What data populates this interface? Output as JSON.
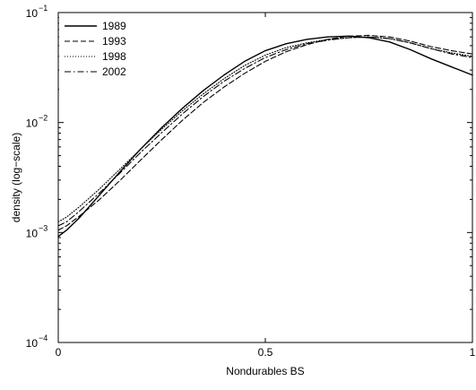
{
  "chart_data": {
    "type": "line",
    "title": "",
    "xlabel": "Nondurables BS",
    "ylabel": "density (log−scale)",
    "xlim": [
      0,
      1
    ],
    "ylim": [
      0.0001,
      0.1
    ],
    "yscale": "log",
    "grid": false,
    "legend_position": "top-left",
    "x_ticks": [
      {
        "value": 0,
        "label": "0"
      },
      {
        "value": 0.5,
        "label": "0.5"
      },
      {
        "value": 1,
        "label": "1"
      }
    ],
    "y_ticks": [
      {
        "value": 0.0001,
        "base": "10",
        "exp": "−4"
      },
      {
        "value": 0.001,
        "base": "10",
        "exp": "−3"
      },
      {
        "value": 0.01,
        "base": "10",
        "exp": "−2"
      },
      {
        "value": 0.1,
        "base": "10",
        "exp": "−1"
      }
    ],
    "series": [
      {
        "name": "1989",
        "line_style": "solid",
        "color": "#000000",
        "x": [
          0,
          0.02,
          0.05,
          0.1,
          0.15,
          0.2,
          0.25,
          0.3,
          0.35,
          0.4,
          0.45,
          0.5,
          0.55,
          0.6,
          0.65,
          0.7,
          0.75,
          0.8,
          0.85,
          0.9,
          0.95,
          1.0
        ],
        "y": [
          0.00092,
          0.00105,
          0.00135,
          0.0022,
          0.0036,
          0.0058,
          0.009,
          0.0135,
          0.0195,
          0.027,
          0.036,
          0.045,
          0.052,
          0.057,
          0.06,
          0.061,
          0.059,
          0.054,
          0.046,
          0.038,
          0.032,
          0.027
        ]
      },
      {
        "name": "1993",
        "line_style": "dashed",
        "color": "#000000",
        "x": [
          0,
          0.02,
          0.05,
          0.1,
          0.15,
          0.2,
          0.25,
          0.3,
          0.35,
          0.4,
          0.45,
          0.5,
          0.55,
          0.6,
          0.65,
          0.7,
          0.75,
          0.8,
          0.85,
          0.9,
          0.95,
          1.0
        ],
        "y": [
          0.00105,
          0.00115,
          0.0014,
          0.002,
          0.003,
          0.0046,
          0.007,
          0.0105,
          0.0152,
          0.021,
          0.028,
          0.036,
          0.044,
          0.051,
          0.057,
          0.061,
          0.062,
          0.06,
          0.055,
          0.049,
          0.045,
          0.042
        ]
      },
      {
        "name": "1998",
        "line_style": "dotted",
        "color": "#000000",
        "x": [
          0,
          0.02,
          0.05,
          0.1,
          0.15,
          0.2,
          0.25,
          0.3,
          0.35,
          0.4,
          0.45,
          0.5,
          0.55,
          0.6,
          0.65,
          0.7,
          0.75,
          0.8,
          0.85,
          0.9,
          0.95,
          1.0
        ],
        "y": [
          0.00125,
          0.00138,
          0.0017,
          0.0025,
          0.0038,
          0.0058,
          0.0087,
          0.0128,
          0.0182,
          0.025,
          0.033,
          0.041,
          0.048,
          0.053,
          0.057,
          0.059,
          0.06,
          0.058,
          0.053,
          0.047,
          0.043,
          0.04
        ]
      },
      {
        "name": "2002",
        "line_style": "dashdot",
        "color": "#000000",
        "x": [
          0,
          0.02,
          0.05,
          0.1,
          0.15,
          0.2,
          0.25,
          0.3,
          0.35,
          0.4,
          0.45,
          0.5,
          0.55,
          0.6,
          0.65,
          0.7,
          0.75,
          0.8,
          0.85,
          0.9,
          0.95,
          1.0
        ],
        "y": [
          0.00115,
          0.00125,
          0.00155,
          0.0023,
          0.0035,
          0.0054,
          0.0081,
          0.012,
          0.0172,
          0.0237,
          0.031,
          0.039,
          0.046,
          0.052,
          0.056,
          0.059,
          0.06,
          0.058,
          0.053,
          0.047,
          0.042,
          0.039
        ]
      }
    ]
  }
}
